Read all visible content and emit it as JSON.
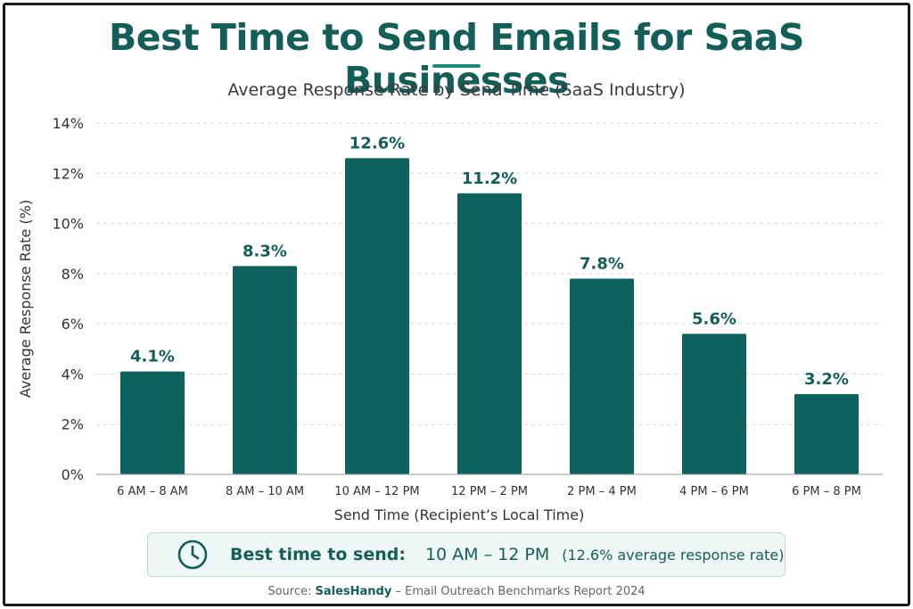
{
  "title": "Best Time to Send Emails for SaaS Businesses",
  "chart_data": {
    "type": "bar",
    "title": "Average Response Rate by Send Time (SaaS Industry)",
    "xlabel": "Send Time (Recipient’s Local Time)",
    "ylabel": "Average Response Rate (%)",
    "ylim": [
      0,
      14
    ],
    "yticks": [
      0,
      2,
      4,
      6,
      8,
      10,
      12,
      14
    ],
    "ytick_suffix": "%",
    "categories": [
      "6 AM – 8 AM",
      "8 AM – 10 AM",
      "10 AM – 12 PM",
      "12 PM – 2 PM",
      "2 PM – 4 PM",
      "4 PM – 6 PM",
      "6 PM – 8 PM"
    ],
    "values": [
      4.1,
      8.3,
      12.6,
      11.2,
      7.8,
      5.6,
      3.2
    ],
    "data_labels": [
      "4.1%",
      "8.3%",
      "12.6%",
      "11.2%",
      "7.8%",
      "5.6%",
      "3.2%"
    ],
    "bar_color": "#0e625d",
    "label_color": "#145e5a",
    "grid": true
  },
  "callout": {
    "label": "Best time to send:",
    "range": "10 AM – 12 PM",
    "note": "(12.6% average response rate)",
    "icon": "clock-icon"
  },
  "source": {
    "prefix": "Source:",
    "brand": "SalesHandy",
    "rest": "– Email Outreach Benchmarks Report 2024"
  }
}
